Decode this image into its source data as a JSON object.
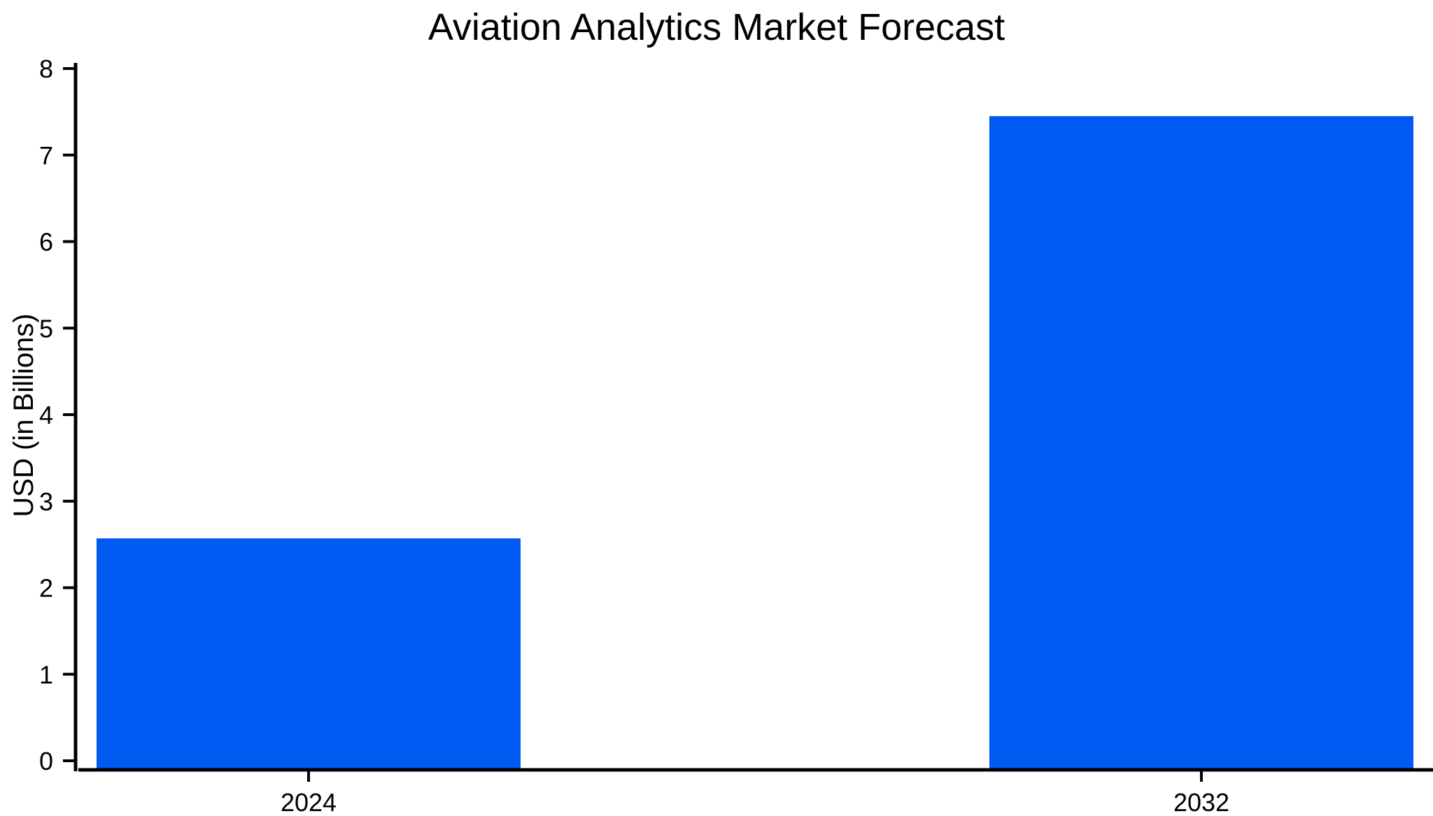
{
  "chart_data": {
    "type": "bar",
    "title": "Aviation Analytics Market Forecast",
    "xlabel": "",
    "ylabel": "USD (in Billions)",
    "categories": [
      "2024",
      "2032"
    ],
    "values": [
      2.57,
      7.45
    ],
    "ylim": [
      0,
      8
    ],
    "yticks": [
      "0",
      "1",
      "2",
      "3",
      "4",
      "5",
      "6",
      "7",
      "8"
    ],
    "grid": false,
    "bar_color": "#0059F0"
  }
}
